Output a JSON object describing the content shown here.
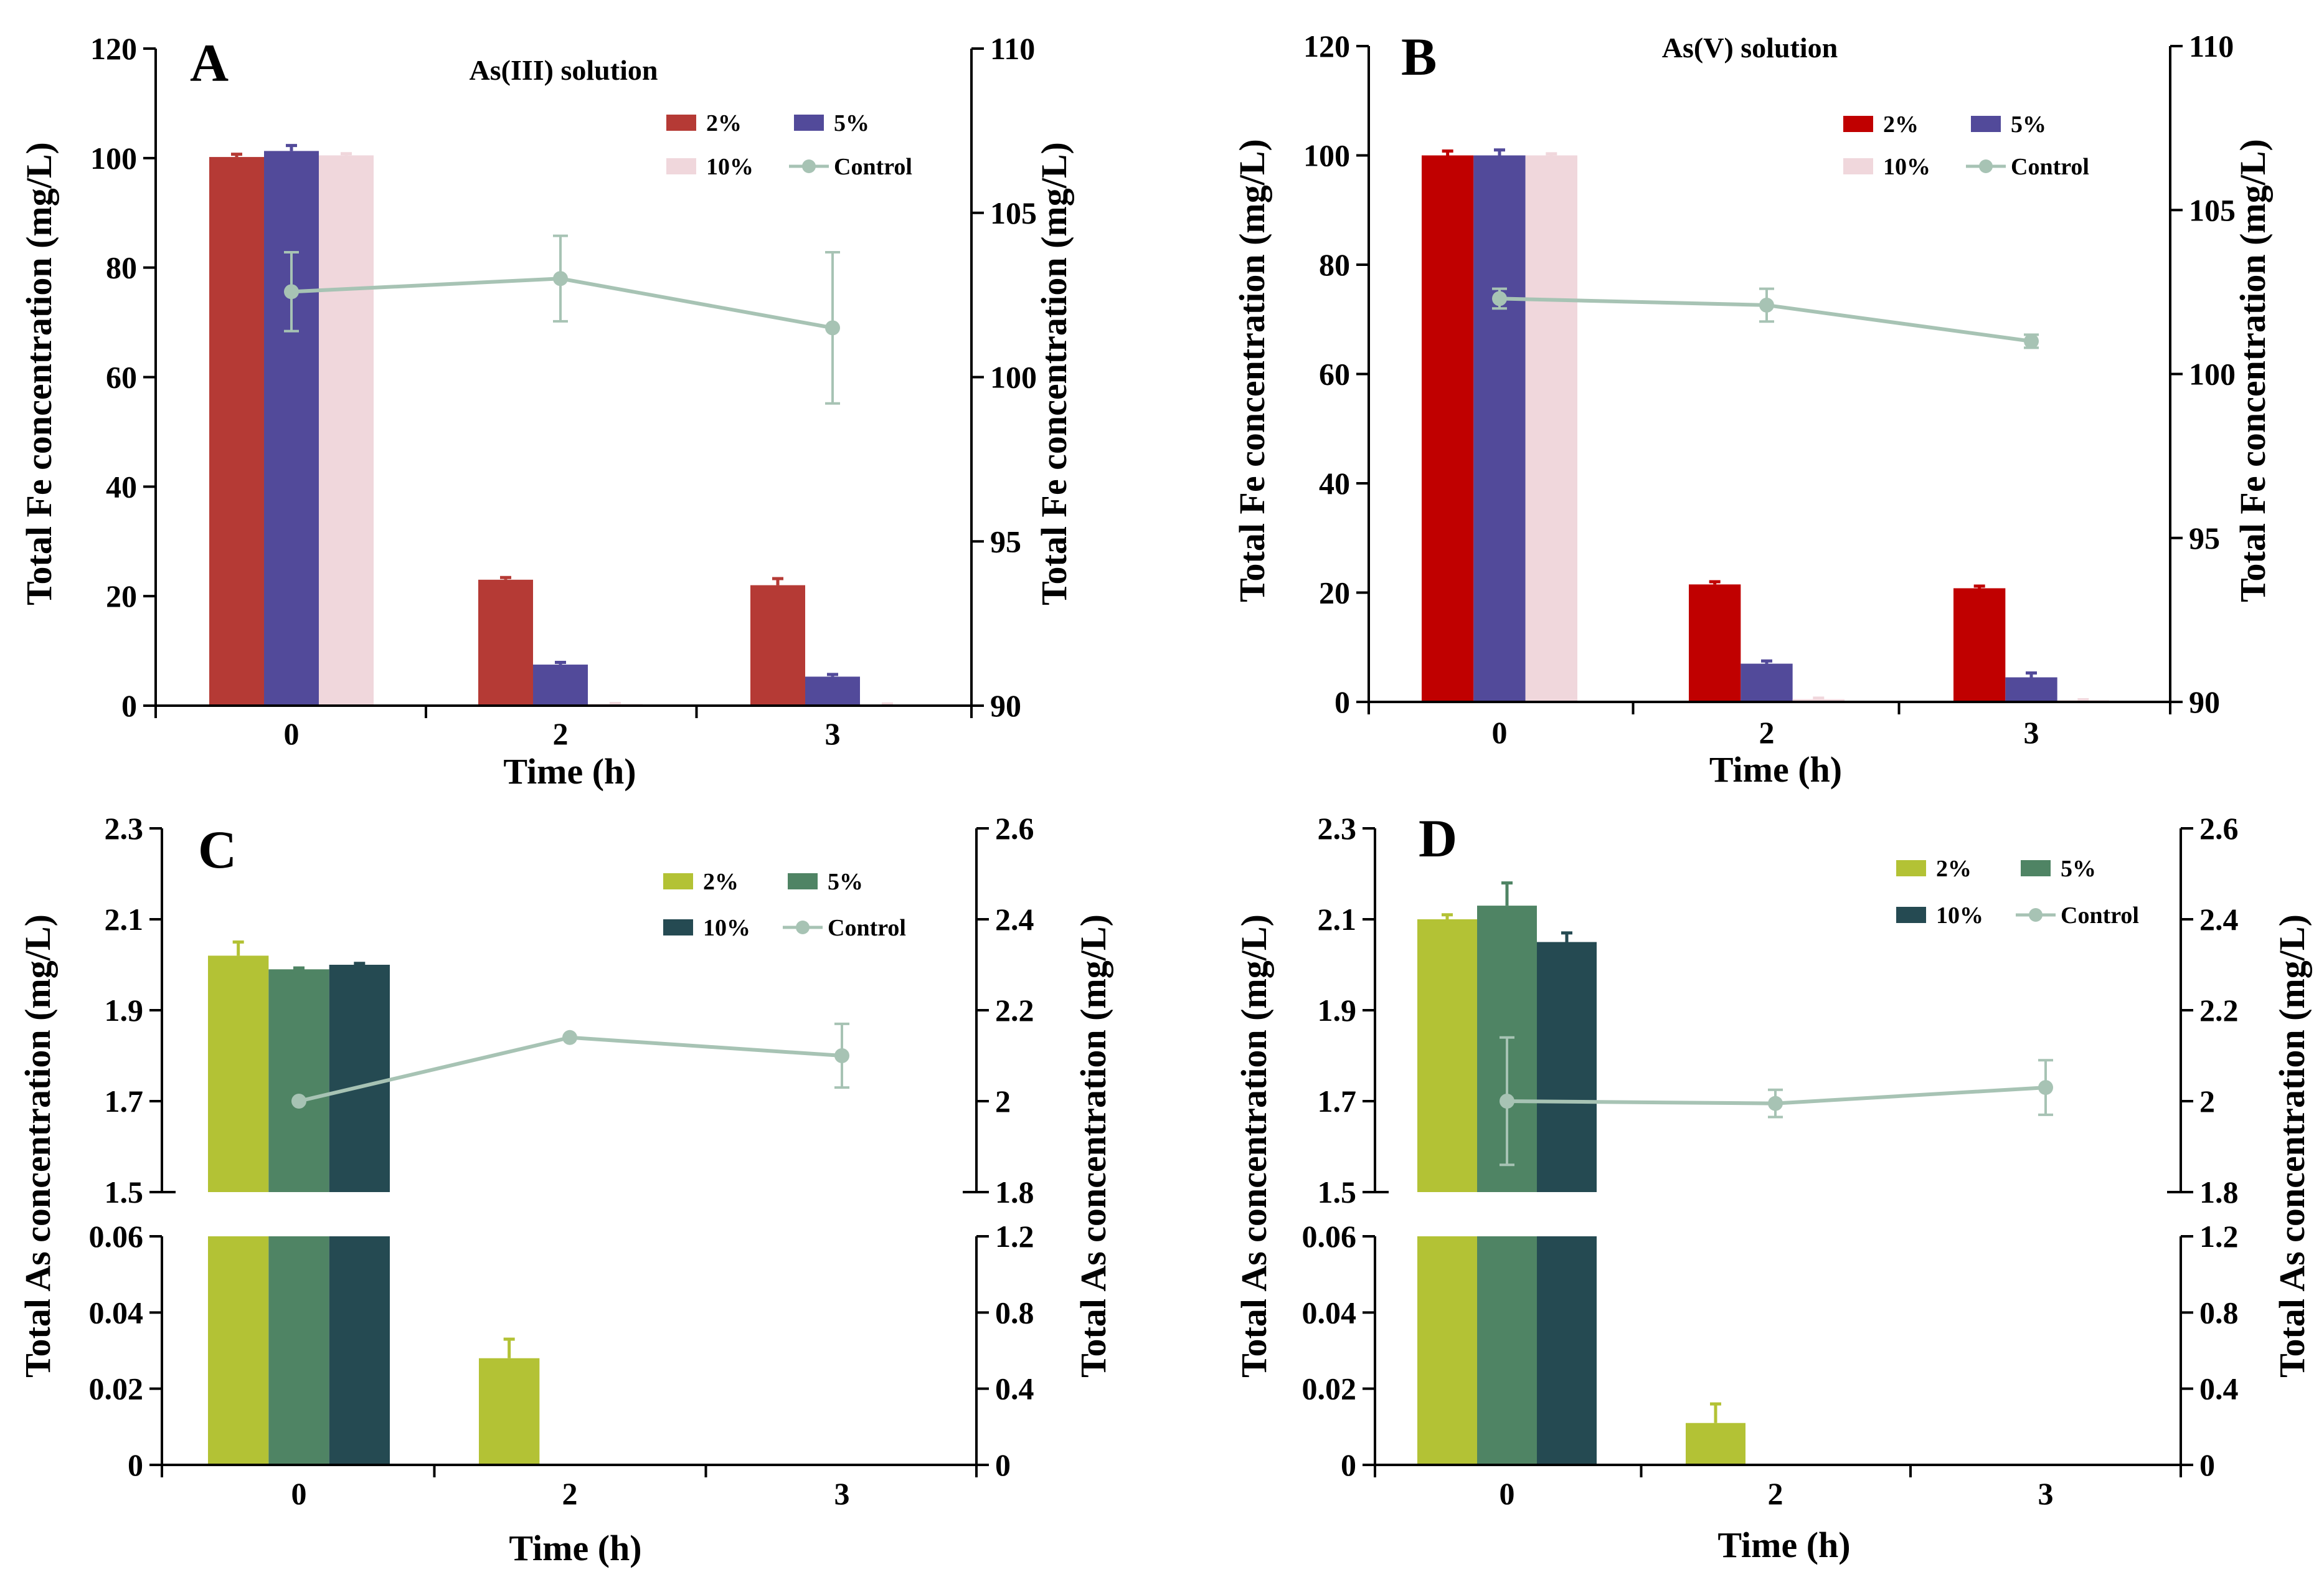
{
  "figure": {
    "type": "multi-panel bar + line chart"
  },
  "chart_data": [
    {
      "panel": "A",
      "type": "bar",
      "title": "As(III)  solution",
      "xlabel": "Time  (h)",
      "ylabel": "Total Fe concentration  (mg/L)",
      "y2label": "Total Fe concentration  (mg/L)",
      "categories": [
        "0",
        "2",
        "3"
      ],
      "ylim": [
        0,
        120
      ],
      "yticks": [
        0,
        20,
        40,
        60,
        80,
        100,
        120
      ],
      "y2lim": [
        90,
        110
      ],
      "y2ticks": [
        90,
        95,
        100,
        105,
        110
      ],
      "series": [
        {
          "name": "2%",
          "color": "#b53a35",
          "values": [
            100.2,
            23.0,
            22.0
          ],
          "err": [
            0.5,
            0.4,
            1.2
          ]
        },
        {
          "name": "5%",
          "color": "#524a9a",
          "values": [
            101.3,
            7.5,
            5.3
          ],
          "err": [
            1.0,
            0.4,
            0.4
          ]
        },
        {
          "name": "10%",
          "color": "#f0d7dc",
          "values": [
            100.5,
            0.3,
            0.2
          ],
          "err": [
            0.3,
            0.1,
            0.1
          ]
        }
      ],
      "control": {
        "name": "Control",
        "color": "#a7c3b4",
        "axis": "y2",
        "values": [
          102.6,
          103.0,
          101.5
        ],
        "err": [
          1.2,
          1.3,
          2.3
        ]
      }
    },
    {
      "panel": "B",
      "type": "bar",
      "title": "As(V)  solution",
      "xlabel": "Time  (h)",
      "ylabel": "Total Fe concentration  (mg/L)",
      "y2label": "Total Fe concentration  (mg/L)",
      "categories": [
        "0",
        "2",
        "3"
      ],
      "ylim": [
        0,
        120
      ],
      "yticks": [
        0,
        20,
        40,
        60,
        80,
        100,
        120
      ],
      "y2lim": [
        90,
        110
      ],
      "y2ticks": [
        90,
        95,
        100,
        105,
        110
      ],
      "series": [
        {
          "name": "2%",
          "color": "#c00000",
          "values": [
            100.0,
            21.5,
            20.8
          ],
          "err": [
            0.8,
            0.5,
            0.4
          ]
        },
        {
          "name": "5%",
          "color": "#524a9a",
          "values": [
            100.0,
            7.0,
            4.5
          ],
          "err": [
            1.0,
            0.5,
            0.8
          ]
        },
        {
          "name": "10%",
          "color": "#f0d7dc",
          "values": [
            100.0,
            0.5,
            0.3
          ],
          "err": [
            0.3,
            0.2,
            0.1
          ]
        }
      ],
      "control": {
        "name": "Control",
        "color": "#a7c3b4",
        "axis": "y2",
        "values": [
          102.3,
          102.1,
          101.0
        ],
        "err": [
          0.3,
          0.5,
          0.2
        ]
      }
    },
    {
      "panel": "C",
      "type": "bar",
      "title": "",
      "xlabel": "Time  (h)",
      "ylabel": "Total As concentration  (mg/L)",
      "y2label": "Total As concentration  (mg/L)",
      "categories": [
        "0",
        "2",
        "3"
      ],
      "broken_axis": true,
      "ylim_upper": [
        1.5,
        2.3
      ],
      "yticks_upper": [
        "1.5",
        "1.7",
        "1.9",
        "2.1",
        "2.3"
      ],
      "ylim_lower": [
        0,
        0.06
      ],
      "yticks_lower": [
        "0",
        "0.02",
        "0.04",
        "0.06"
      ],
      "y2lim_upper": [
        1.8,
        2.6
      ],
      "y2ticks_upper": [
        "1.8",
        "2",
        "2.2",
        "2.4",
        "2.6"
      ],
      "y2lim_lower": [
        0,
        1.2
      ],
      "y2ticks_lower": [
        "0",
        "0.4",
        "0.8",
        "1.2"
      ],
      "series": [
        {
          "name": "2%",
          "color": "#b3c235",
          "values": [
            2.02,
            0.028,
            0
          ],
          "err": [
            0.03,
            0.005,
            0
          ]
        },
        {
          "name": "5%",
          "color": "#4f8464",
          "values": [
            1.99,
            0,
            0
          ],
          "err": [
            0.003,
            0,
            0
          ]
        },
        {
          "name": "10%",
          "color": "#254a52",
          "values": [
            2.0,
            0,
            0
          ],
          "err": [
            0.003,
            0,
            0
          ]
        }
      ],
      "control": {
        "name": "Control",
        "color": "#a7c3b4",
        "axis": "y2",
        "values": [
          2.0,
          2.14,
          2.1
        ],
        "err": [
          0,
          0,
          0.07
        ]
      }
    },
    {
      "panel": "D",
      "type": "bar",
      "title": "",
      "xlabel": "Time  (h)",
      "ylabel": "Total As concentration  (mg/L)",
      "y2label": "Total As concentration  (mg/L)",
      "categories": [
        "0",
        "2",
        "3"
      ],
      "broken_axis": true,
      "ylim_upper": [
        1.5,
        2.3
      ],
      "yticks_upper": [
        "1.5",
        "1.7",
        "1.9",
        "2.1",
        "2.3"
      ],
      "ylim_lower": [
        0,
        0.06
      ],
      "yticks_lower": [
        "0",
        "0.02",
        "0.04",
        "0.06"
      ],
      "y2lim_upper": [
        1.8,
        2.6
      ],
      "y2ticks_upper": [
        "1.8",
        "2",
        "2.2",
        "2.4",
        "2.6"
      ],
      "y2lim_lower": [
        0,
        1.2
      ],
      "y2ticks_lower": [
        "0",
        "0.4",
        "0.8",
        "1.2"
      ],
      "series": [
        {
          "name": "2%",
          "color": "#b3c235",
          "values": [
            2.1,
            0.011,
            0
          ],
          "err": [
            0.01,
            0.005,
            0
          ]
        },
        {
          "name": "5%",
          "color": "#4f8464",
          "values": [
            2.13,
            0,
            0
          ],
          "err": [
            0.05,
            0,
            0
          ]
        },
        {
          "name": "10%",
          "color": "#254a52",
          "values": [
            2.05,
            0,
            0
          ],
          "err": [
            0.02,
            0,
            0
          ]
        }
      ],
      "control": {
        "name": "Control",
        "color": "#a7c3b4",
        "axis": "y2",
        "values": [
          2.0,
          1.995,
          2.03
        ],
        "err": [
          0.14,
          0.03,
          0.06
        ]
      }
    }
  ]
}
